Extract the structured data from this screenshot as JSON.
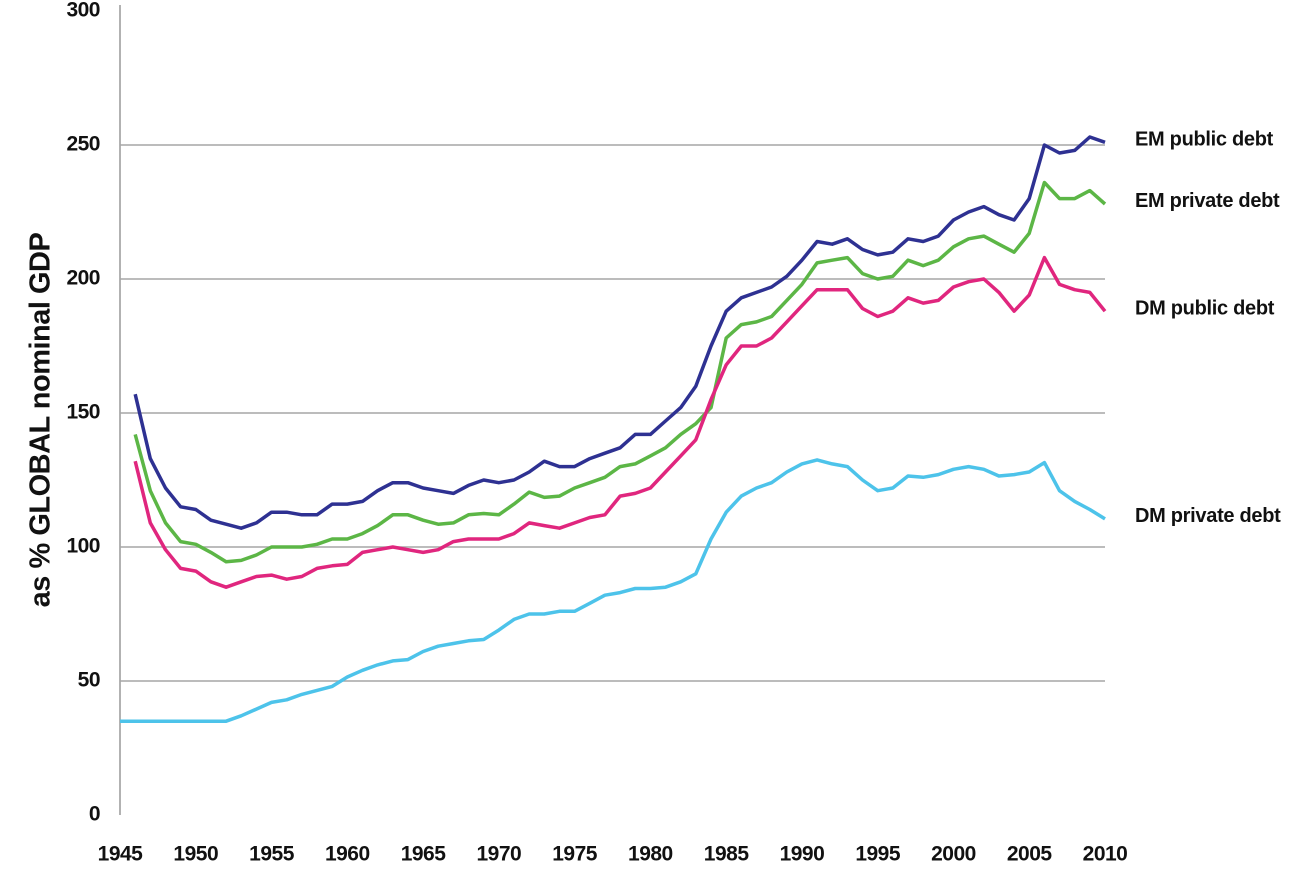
{
  "chart_data": {
    "type": "line",
    "ylabel": "as % GLOBAL nominal GDP",
    "x": [
      1945,
      1946,
      1947,
      1948,
      1949,
      1950,
      1951,
      1952,
      1953,
      1954,
      1955,
      1956,
      1957,
      1958,
      1959,
      1960,
      1961,
      1962,
      1963,
      1964,
      1965,
      1966,
      1967,
      1968,
      1969,
      1970,
      1971,
      1972,
      1973,
      1974,
      1975,
      1976,
      1977,
      1978,
      1979,
      1980,
      1981,
      1982,
      1983,
      1984,
      1985,
      1986,
      1987,
      1988,
      1989,
      1990,
      1991,
      1992,
      1993,
      1994,
      1995,
      1996,
      1997,
      1998,
      1999,
      2000,
      2001,
      2002,
      2003,
      2004,
      2005,
      2006,
      2007,
      2008,
      2009,
      2010
    ],
    "series": [
      {
        "name": "EM public debt",
        "color": "#2e3192",
        "values": [
          null,
          157,
          133,
          122,
          115,
          114,
          110,
          108.5,
          107,
          109,
          113,
          113,
          112,
          112,
          116,
          116,
          117,
          121,
          124,
          124,
          122,
          121,
          120,
          123,
          125,
          124,
          125,
          128,
          132,
          130,
          130,
          133,
          135,
          137,
          142,
          142,
          147,
          152,
          160,
          175,
          188,
          193,
          195,
          197,
          201,
          207,
          214,
          213,
          215,
          211,
          209,
          210,
          215,
          214,
          216,
          222,
          225,
          227,
          224,
          222,
          230,
          250,
          247,
          248,
          253,
          251
        ]
      },
      {
        "name": "EM private debt",
        "color": "#5cb646",
        "values": [
          null,
          142,
          121,
          109,
          102,
          101,
          98,
          94.5,
          95,
          97,
          100,
          100,
          100,
          101,
          103,
          103,
          105,
          108,
          112,
          112,
          110,
          108.5,
          109,
          112,
          112.5,
          112,
          116,
          120.5,
          118.5,
          119,
          122,
          124,
          126,
          130,
          131,
          134,
          137,
          142,
          146,
          152,
          178,
          183,
          184,
          186,
          192,
          198,
          206,
          207,
          208,
          202,
          200,
          201,
          207,
          205,
          207,
          212,
          215,
          216,
          213,
          210,
          217,
          236,
          230,
          230,
          233,
          228
        ]
      },
      {
        "name": "DM public debt",
        "color": "#e0267e",
        "values": [
          null,
          132,
          109,
          99,
          92,
          91,
          87,
          85,
          87,
          89,
          89.5,
          88,
          89,
          92,
          93,
          93.5,
          98,
          99,
          100,
          99,
          98,
          99,
          102,
          103,
          103,
          103,
          105,
          109,
          108,
          107,
          109,
          111,
          112,
          119,
          120,
          122,
          128,
          134,
          140,
          155,
          168,
          175,
          175,
          178,
          184,
          190,
          196,
          196,
          196,
          189,
          186,
          188,
          193,
          191,
          192,
          197,
          199,
          200,
          195,
          188,
          194,
          208,
          198,
          196,
          195,
          188
        ]
      },
      {
        "name": "DM private debt",
        "color": "#4dc3ea",
        "values": [
          35,
          35,
          35,
          35,
          35,
          35,
          35,
          35,
          37,
          39.5,
          42,
          43,
          45,
          46.5,
          48,
          51.5,
          54,
          56,
          57.5,
          58,
          61,
          63,
          64,
          65,
          65.5,
          69,
          73,
          75,
          75,
          76,
          76,
          79,
          82,
          83,
          84.5,
          84.5,
          85,
          87,
          90,
          103,
          113,
          119,
          122,
          124,
          128,
          131,
          132.5,
          131,
          130,
          125,
          121,
          122,
          126.5,
          126,
          127,
          129,
          130,
          129,
          126.5,
          127,
          128,
          131.5,
          121,
          117,
          114,
          110.5
        ]
      }
    ],
    "xlim": [
      1945,
      2010
    ],
    "xticks": [
      1945,
      1950,
      1955,
      1960,
      1965,
      1970,
      1975,
      1980,
      1985,
      1990,
      1995,
      2000,
      2005,
      2010
    ],
    "ylim": [
      0,
      300
    ],
    "yticks": [
      0,
      50,
      100,
      150,
      200,
      250,
      300
    ],
    "grid": true
  }
}
